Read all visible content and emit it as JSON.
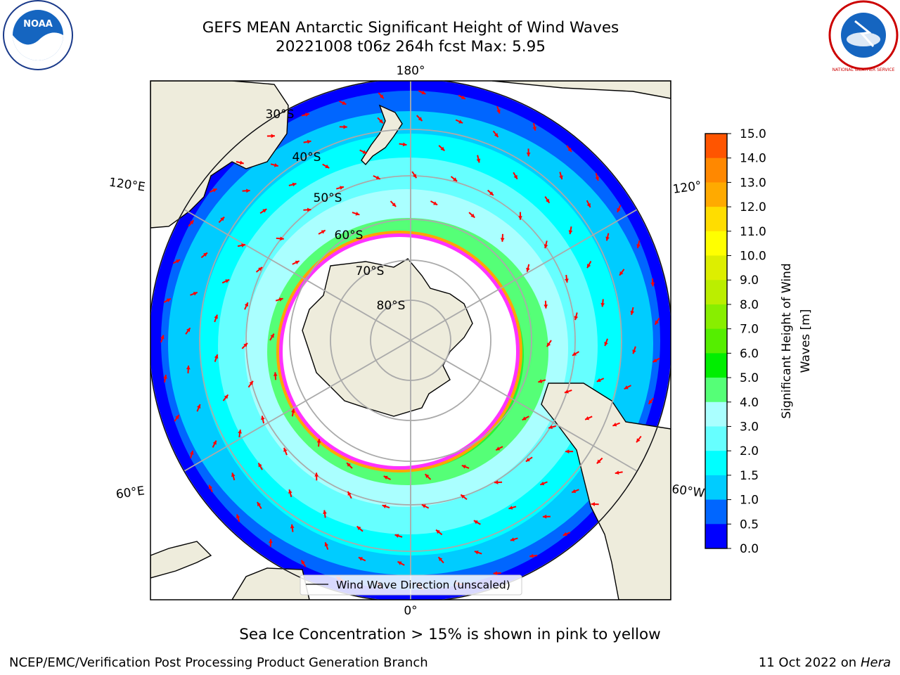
{
  "title": {
    "line1": "GEFS MEAN Antarctic Significant Height of Wind Waves",
    "line2": "20221008 t06z 264h fcst   Max: 5.95"
  },
  "map": {
    "projection": "south-polar-stereographic",
    "longitude_labels": {
      "top": "180°",
      "bottom": "0°",
      "left_upper": "120°E",
      "left_lower": "60°E",
      "right_upper": "120°",
      "right_lower": "60°W"
    },
    "latitude_labels": [
      "30°S",
      "40°S",
      "50°S",
      "60°S",
      "70°S",
      "80°S"
    ],
    "legend_label": "Wind Wave Direction (unscaled)",
    "arrow_color": "#ff0000",
    "land_color": "#eeecdc",
    "ice_edge_colors": [
      "#ff33ff",
      "#ffa500",
      "#ffff00"
    ]
  },
  "colorbar": {
    "label_line1": "Significant Height of Wind",
    "label_line2": "Waves [m]",
    "ticks": [
      "0.0",
      "0.5",
      "1.0",
      "1.5",
      "2.0",
      "3.0",
      "4.0",
      "5.0",
      "6.0",
      "7.0",
      "8.0",
      "9.0",
      "10.0",
      "11.0",
      "12.0",
      "13.0",
      "14.0",
      "15.0"
    ],
    "colors": [
      "#0000ff",
      "#0066ff",
      "#00ccff",
      "#00ffff",
      "#66ffff",
      "#aaffff",
      "#55ff77",
      "#00ee00",
      "#55ee00",
      "#88ee00",
      "#bbee00",
      "#ddee00",
      "#ffff00",
      "#ffdd00",
      "#ffaa00",
      "#ff8800",
      "#ff5500",
      "#ff2200",
      "#ff0000"
    ]
  },
  "subtitle": "Sea Ice Concentration > 15% is shown in pink to yellow",
  "footer": {
    "left": "NCEP/EMC/Verification Post Processing Product Generation Branch",
    "right_date": "11 Oct 2022 on ",
    "right_host": "Hera"
  },
  "logos": {
    "left": "NOAA",
    "right": "NATIONAL WEATHER SERVICE"
  }
}
